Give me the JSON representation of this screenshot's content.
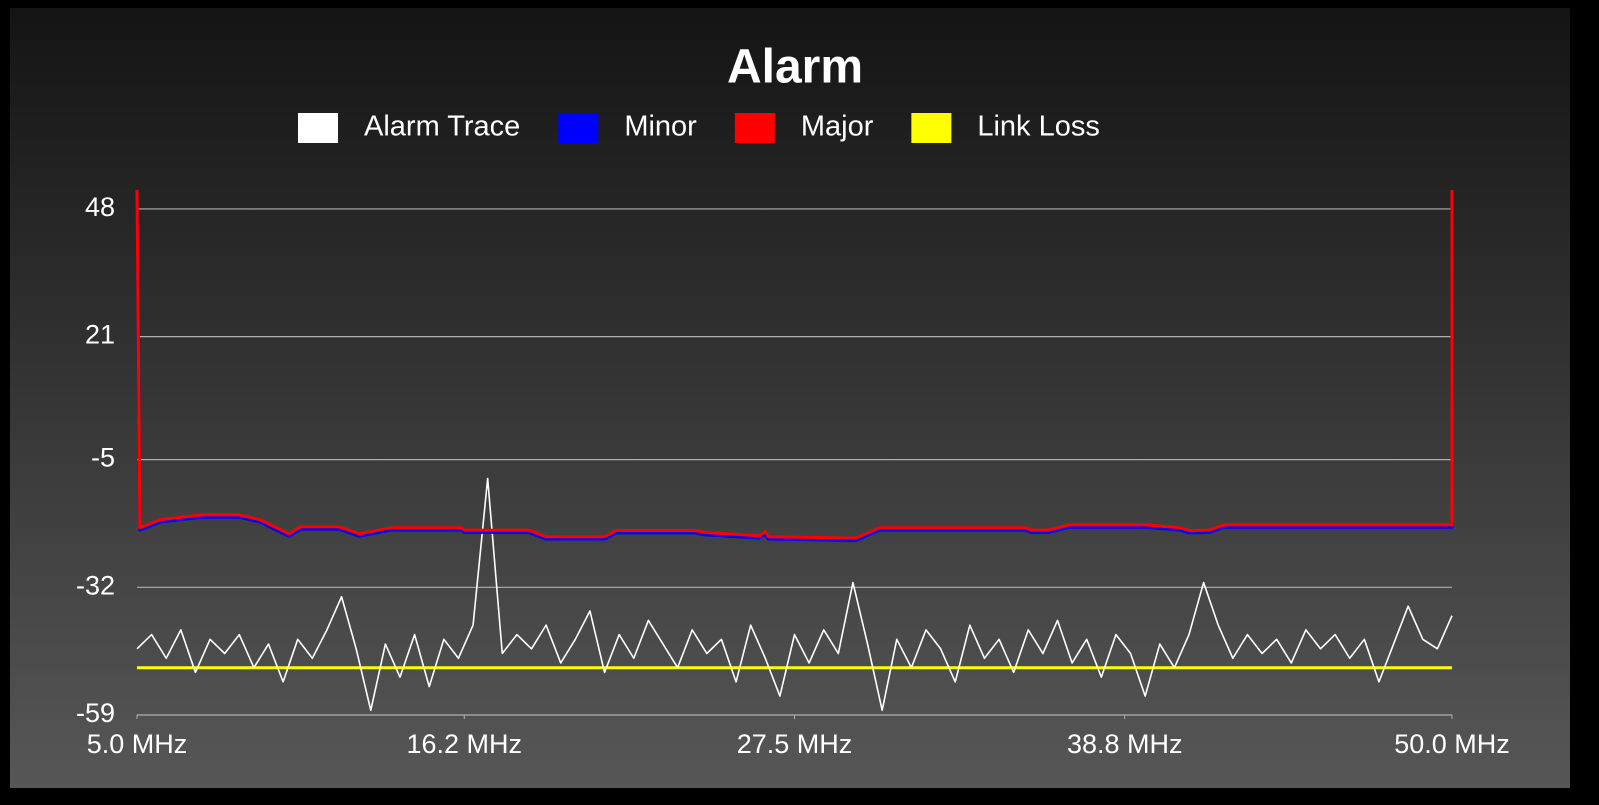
{
  "chart_data": {
    "type": "line",
    "title": "Alarm",
    "xlim": [
      5,
      50
    ],
    "xticks": [
      {
        "value": 5,
        "label": "5.0 MHz"
      },
      {
        "value": 16.2,
        "label": "16.2 MHz"
      },
      {
        "value": 27.5,
        "label": "27.5 MHz"
      },
      {
        "value": 38.8,
        "label": "38.8 MHz"
      },
      {
        "value": 50,
        "label": "50.0 MHz"
      }
    ],
    "ylim": [
      -59,
      52
    ],
    "yticks": [
      48,
      21,
      -5,
      -32,
      -59
    ],
    "grid": true,
    "legend": "top",
    "series": [
      {
        "name": "Alarm Trace",
        "color": "#ffffff",
        "x": [
          5.0,
          5.5,
          6.0,
          6.5,
          7.0,
          7.5,
          8.0,
          8.5,
          9.0,
          9.5,
          10.0,
          10.5,
          11.0,
          11.5,
          12.0,
          12.5,
          13.0,
          13.5,
          14.0,
          14.5,
          15.0,
          15.5,
          16.0,
          16.5,
          17.0,
          17.5,
          18.0,
          18.5,
          19.0,
          19.5,
          20.0,
          20.5,
          21.0,
          21.5,
          22.0,
          22.5,
          23.0,
          23.5,
          24.0,
          24.5,
          25.0,
          25.5,
          26.0,
          26.5,
          27.0,
          27.5,
          28.0,
          28.5,
          29.0,
          29.5,
          30.0,
          30.5,
          31.0,
          31.5,
          32.0,
          32.5,
          33.0,
          33.5,
          34.0,
          34.5,
          35.0,
          35.5,
          36.0,
          36.5,
          37.0,
          37.5,
          38.0,
          38.5,
          39.0,
          39.5,
          40.0,
          40.5,
          41.0,
          41.5,
          42.0,
          42.5,
          43.0,
          43.5,
          44.0,
          44.5,
          45.0,
          45.5,
          46.0,
          46.5,
          47.0,
          47.5,
          48.0,
          48.5,
          49.0,
          49.5,
          50.0
        ],
        "values": [
          -45,
          -42,
          -47,
          -41,
          -50,
          -43,
          -46,
          -42,
          -49,
          -44,
          -52,
          -43,
          -47,
          -41,
          -34,
          -45,
          -58,
          -44,
          -51,
          -42,
          -53,
          -43,
          -47,
          -40,
          -9,
          -46,
          -42,
          -45,
          -40,
          -48,
          -43,
          -37,
          -50,
          -42,
          -47,
          -39,
          -44,
          -49,
          -41,
          -46,
          -43,
          -52,
          -40,
          -47,
          -55,
          -42,
          -48,
          -41,
          -46,
          -31,
          -44,
          -58,
          -43,
          -49,
          -41,
          -45,
          -52,
          -40,
          -47,
          -43,
          -50,
          -41,
          -46,
          -39,
          -48,
          -43,
          -51,
          -42,
          -46,
          -55,
          -44,
          -49,
          -42,
          -31,
          -40,
          -47,
          -42,
          -46,
          -43,
          -48,
          -41,
          -45,
          -42,
          -47,
          -43,
          -52,
          -44,
          -36,
          -43,
          -45,
          -38
        ]
      },
      {
        "name": "Minor",
        "color": "#0000ff",
        "x": [
          5.0,
          5.1,
          5.8,
          7.2,
          8.5,
          9.2,
          10.2,
          10.6,
          11.9,
          12.6,
          13.7,
          16.1,
          16.2,
          18.4,
          19.0,
          21.0,
          21.4,
          24.1,
          24.4,
          26.3,
          26.5,
          26.6,
          29.6,
          30.4,
          35.4,
          35.6,
          36.2,
          36.9,
          39.5,
          40.7,
          41.0,
          41.7,
          42.2,
          47.0,
          50.0,
          50.0
        ],
        "values": [
          52,
          -19.9,
          -18.2,
          -17.2,
          -17.2,
          -18.2,
          -21.2,
          -19.7,
          -19.7,
          -21.2,
          -19.9,
          -19.9,
          -20.4,
          -20.4,
          -21.8,
          -21.8,
          -20.5,
          -20.5,
          -20.9,
          -21.6,
          -20.7,
          -21.8,
          -22.1,
          -19.9,
          -19.9,
          -20.4,
          -20.4,
          -19.3,
          -19.3,
          -19.9,
          -20.5,
          -20.4,
          -19.3,
          -19.3,
          -19.3,
          52
        ]
      },
      {
        "name": "Major",
        "color": "#ff0000",
        "x": [
          5.0,
          5.1,
          5.8,
          7.2,
          8.5,
          9.2,
          10.2,
          10.6,
          11.9,
          12.6,
          13.7,
          16.1,
          16.2,
          18.4,
          19.0,
          21.0,
          21.4,
          24.1,
          24.4,
          26.3,
          26.5,
          26.6,
          29.6,
          30.4,
          35.4,
          35.6,
          36.2,
          36.9,
          39.5,
          40.7,
          41.0,
          41.7,
          42.2,
          47.0,
          50.0,
          50.0
        ],
        "values": [
          52,
          -19.4,
          -17.7,
          -16.7,
          -16.7,
          -17.7,
          -20.7,
          -19.2,
          -19.2,
          -20.7,
          -19.4,
          -19.4,
          -19.9,
          -19.9,
          -21.3,
          -21.3,
          -20.0,
          -20.0,
          -20.4,
          -21.1,
          -20.2,
          -21.3,
          -21.6,
          -19.4,
          -19.4,
          -19.9,
          -19.9,
          -18.8,
          -18.8,
          -19.4,
          -20.0,
          -19.9,
          -18.8,
          -18.8,
          -18.8,
          52
        ]
      },
      {
        "name": "Link Loss",
        "color": "#ffff00",
        "x": [
          5,
          50
        ],
        "values": [
          -49,
          -49
        ]
      }
    ]
  }
}
